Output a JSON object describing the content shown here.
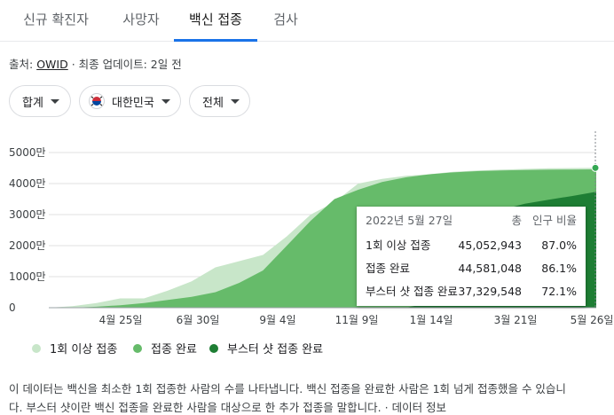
{
  "tabs": [
    {
      "label": "신규 확진자"
    },
    {
      "label": "사망자"
    },
    {
      "label": "백신 접종"
    },
    {
      "label": "검사"
    }
  ],
  "source": {
    "prefix": "출처:",
    "link": "OWID",
    "suffix": "· 최종 업데이트: 2일 전"
  },
  "filters": {
    "measure": "합계",
    "country": "대한민국",
    "range": "전체"
  },
  "chart_data": {
    "type": "area",
    "yticks": [
      "5000만",
      "4000만",
      "3000만",
      "2000만",
      "1000만",
      "0"
    ],
    "ylim": [
      0,
      50000000
    ],
    "xticks": [
      "4월 25일",
      "6월 30일",
      "9월 4일",
      "11월 9일",
      "1월 14일",
      "3월 21일",
      "5월 26일"
    ],
    "series": [
      {
        "name": "1회 이상 접종",
        "color": "#c8e6c9",
        "values": [
          0,
          500000,
          1500000,
          3000000,
          3000000,
          5500000,
          8500000,
          13000000,
          15000000,
          17000000,
          23000000,
          30000000,
          34000000,
          40000000,
          41500000,
          42500000,
          43000000,
          43800000,
          44200000,
          44500000,
          44700000,
          44900000,
          45000000,
          45052943
        ]
      },
      {
        "name": "접종 완료",
        "color": "#66bb6a",
        "values": [
          0,
          0,
          300000,
          800000,
          1500000,
          2500000,
          3500000,
          5000000,
          8000000,
          12000000,
          20000000,
          28000000,
          35000000,
          38000000,
          40500000,
          42000000,
          43000000,
          43600000,
          44000000,
          44200000,
          44350000,
          44450000,
          44520000,
          44581048
        ]
      },
      {
        "name": "부스터 샷 접종 완료",
        "color": "#1e7e34",
        "values": [
          0,
          0,
          0,
          0,
          0,
          0,
          0,
          0,
          0,
          0,
          0,
          0,
          0,
          0,
          0,
          0,
          1500000,
          12000000,
          27000000,
          31500000,
          33500000,
          34800000,
          36000000,
          37329548
        ]
      }
    ],
    "tooltip": {
      "date": "2022년 5월 27일",
      "col_total": "총",
      "col_ratio": "인구 비율",
      "rows": [
        {
          "label": "1회 이상 접종",
          "total": "45,052,943",
          "ratio": "87.0%"
        },
        {
          "label": "접종 완료",
          "total": "44,581,048",
          "ratio": "86.1%"
        },
        {
          "label": "부스터 샷 접종 완료",
          "total": "37,329,548",
          "ratio": "72.1%"
        }
      ]
    }
  },
  "legend": [
    {
      "label": "1회 이상 접종",
      "color": "#c8e6c9"
    },
    {
      "label": "접종 완료",
      "color": "#66bb6a"
    },
    {
      "label": "부스터 샷 접종 완료",
      "color": "#1e7e34"
    }
  ],
  "note": {
    "line1": "이 데이터는 백신을 최소한 1회 접종한 사람의 수를 나타냅니다. 백신 접종을 완료한 사람은 1회 넘게 접종했을 수 있습니",
    "line2": "다. 부스터 샷이란 백신 접종을 완료한 사람을 대상으로 한 추가 접종을 말합니다. · 데이터 정보"
  }
}
